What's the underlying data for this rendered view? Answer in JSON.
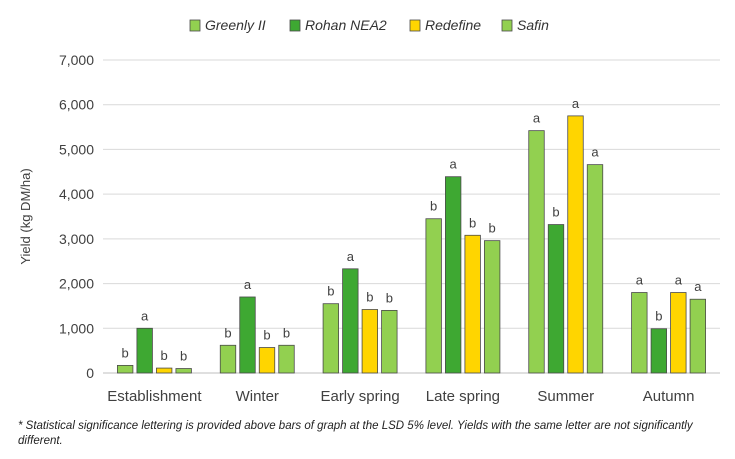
{
  "chart_data": {
    "type": "bar",
    "ylabel": "Yield (kg DM/ha)",
    "xlabel": "",
    "ylim": [
      0,
      7000
    ],
    "yticks": [
      0,
      1000,
      2000,
      3000,
      4000,
      5000,
      6000,
      7000
    ],
    "ytick_labels": [
      "0",
      "1,000",
      "2,000",
      "3,000",
      "4,000",
      "5,000",
      "6,000",
      "7,000"
    ],
    "grid": true,
    "legend_position": "top",
    "categories": [
      "Establishment",
      "Winter",
      "Early spring",
      "Late spring",
      "Summer",
      "Autumn"
    ],
    "series": [
      {
        "name": "Greenly II",
        "color": "#92d050",
        "values": [
          170,
          620,
          1550,
          3450,
          5420,
          1800
        ],
        "letters": [
          "b",
          "b",
          "b",
          "b",
          "a",
          "a"
        ]
      },
      {
        "name": "Rohan NEA2",
        "color": "#3ea832",
        "values": [
          1000,
          1700,
          2330,
          4390,
          3320,
          990
        ],
        "letters": [
          "a",
          "a",
          "a",
          "a",
          "b",
          "b"
        ]
      },
      {
        "name": "Redefine",
        "color": "#ffd500",
        "values": [
          110,
          570,
          1420,
          3080,
          5750,
          1800
        ],
        "letters": [
          "b",
          "b",
          "b",
          "b",
          "a",
          "a"
        ]
      },
      {
        "name": "Safin",
        "color": "#92d050",
        "values": [
          100,
          620,
          1400,
          2960,
          4660,
          1650
        ],
        "letters": [
          "b",
          "b",
          "b",
          "b",
          "a",
          "a"
        ]
      }
    ]
  },
  "footnote": "* Statistical significance lettering is provided above bars of graph at the LSD 5% level. Yields with the same letter are not significantly different."
}
